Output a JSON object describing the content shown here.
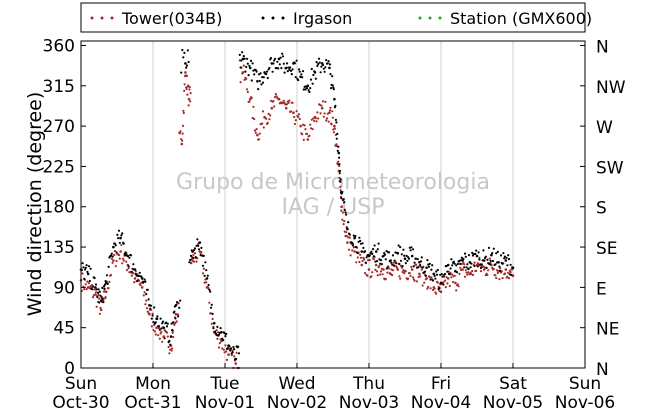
{
  "chart_data": {
    "type": "scatter",
    "ylabel": "Wind direction (degree)",
    "xlabel": "",
    "ylim": [
      0,
      365
    ],
    "xlim": [
      0,
      7
    ],
    "x_unit": "days from Sun Oct-30 00:00",
    "grid": "vertical-only",
    "legend_position": "top",
    "legend": [
      {
        "name": "Tower(034B)",
        "color": "#a52a2a"
      },
      {
        "name": "Irgason",
        "color": "#000000"
      },
      {
        "name": "Station (GMX600)",
        "color": "#2ca02c"
      }
    ],
    "y_ticks": [
      "0",
      "45",
      "90",
      "135",
      "180",
      "225",
      "270",
      "315",
      "360"
    ],
    "y_tick_values": [
      0,
      45,
      90,
      135,
      180,
      225,
      270,
      315,
      360
    ],
    "right_ticks": [
      "N",
      "NE",
      "E",
      "SE",
      "S",
      "SW",
      "W",
      "NW",
      "N"
    ],
    "x_ticks": [
      {
        "day": "Sun",
        "date": "Oct-30"
      },
      {
        "day": "Mon",
        "date": "Oct-31"
      },
      {
        "day": "Tue",
        "date": "Nov-01"
      },
      {
        "day": "Wed",
        "date": "Nov-02"
      },
      {
        "day": "Thu",
        "date": "Nov-03"
      },
      {
        "day": "Fri",
        "date": "Nov-04"
      },
      {
        "day": "Sat",
        "date": "Nov-05"
      },
      {
        "day": "Sun",
        "date": "Nov-06"
      }
    ],
    "series": [
      {
        "name": "Tower(034B)",
        "color": "#a52a2a",
        "points": [
          [
            0.0,
            98
          ],
          [
            0.1,
            90
          ],
          [
            0.2,
            82
          ],
          [
            0.28,
            65
          ],
          [
            0.35,
            85
          ],
          [
            0.45,
            120
          ],
          [
            0.55,
            130
          ],
          [
            0.65,
            115
          ],
          [
            0.75,
            100
          ],
          [
            0.85,
            90
          ],
          [
            0.95,
            60
          ],
          [
            1.05,
            45
          ],
          [
            1.15,
            35
          ],
          [
            1.25,
            25
          ],
          [
            1.32,
            60
          ],
          [
            1.4,
            250
          ],
          [
            1.45,
            330
          ],
          [
            1.5,
            300
          ],
          [
            1.55,
            120
          ],
          [
            1.65,
            130
          ],
          [
            1.75,
            90
          ],
          [
            1.85,
            40
          ],
          [
            1.95,
            30
          ],
          [
            2.05,
            15
          ],
          [
            2.15,
            5
          ],
          [
            2.25,
            330
          ],
          [
            2.35,
            300
          ],
          [
            2.45,
            260
          ],
          [
            2.55,
            280
          ],
          [
            2.65,
            290
          ],
          [
            2.75,
            300
          ],
          [
            2.85,
            290
          ],
          [
            2.95,
            285
          ],
          [
            3.05,
            270
          ],
          [
            3.15,
            255
          ],
          [
            3.25,
            280
          ],
          [
            3.35,
            290
          ],
          [
            3.45,
            285
          ],
          [
            3.52,
            270
          ],
          [
            3.58,
            220
          ],
          [
            3.62,
            180
          ],
          [
            3.7,
            140
          ],
          [
            3.8,
            130
          ],
          [
            3.9,
            115
          ],
          [
            4.0,
            110
          ],
          [
            4.1,
            115
          ],
          [
            4.2,
            110
          ],
          [
            4.3,
            105
          ],
          [
            4.4,
            110
          ],
          [
            4.5,
            108
          ],
          [
            4.6,
            110
          ],
          [
            4.7,
            105
          ],
          [
            4.8,
            100
          ],
          [
            4.9,
            90
          ],
          [
            5.0,
            85
          ],
          [
            5.1,
            100
          ],
          [
            5.2,
            95
          ],
          [
            5.3,
            110
          ],
          [
            5.4,
            105
          ],
          [
            5.5,
            115
          ],
          [
            5.6,
            110
          ],
          [
            5.7,
            115
          ],
          [
            5.8,
            108
          ],
          [
            5.9,
            110
          ],
          [
            6.0,
            103
          ]
        ]
      },
      {
        "name": "Irgason",
        "color": "#000000",
        "points": [
          [
            0.0,
            110
          ],
          [
            0.1,
            105
          ],
          [
            0.2,
            90
          ],
          [
            0.28,
            75
          ],
          [
            0.35,
            95
          ],
          [
            0.45,
            135
          ],
          [
            0.55,
            145
          ],
          [
            0.65,
            125
          ],
          [
            0.75,
            110
          ],
          [
            0.85,
            100
          ],
          [
            0.95,
            70
          ],
          [
            1.05,
            55
          ],
          [
            1.15,
            45
          ],
          [
            1.25,
            35
          ],
          [
            1.32,
            70
          ],
          [
            1.45,
            340
          ],
          [
            1.55,
            130
          ],
          [
            1.65,
            140
          ],
          [
            1.75,
            100
          ],
          [
            1.85,
            50
          ],
          [
            1.95,
            40
          ],
          [
            2.05,
            25
          ],
          [
            2.15,
            10
          ],
          [
            2.25,
            345
          ],
          [
            2.35,
            335
          ],
          [
            2.45,
            320
          ],
          [
            2.55,
            330
          ],
          [
            2.65,
            340
          ],
          [
            2.75,
            345
          ],
          [
            2.85,
            335
          ],
          [
            2.95,
            340
          ],
          [
            3.05,
            325
          ],
          [
            3.15,
            315
          ],
          [
            3.25,
            330
          ],
          [
            3.35,
            340
          ],
          [
            3.45,
            335
          ],
          [
            3.52,
            300
          ],
          [
            3.58,
            240
          ],
          [
            3.62,
            195
          ],
          [
            3.7,
            155
          ],
          [
            3.8,
            145
          ],
          [
            3.9,
            130
          ],
          [
            4.0,
            125
          ],
          [
            4.1,
            130
          ],
          [
            4.2,
            125
          ],
          [
            4.3,
            120
          ],
          [
            4.4,
            128
          ],
          [
            4.5,
            122
          ],
          [
            4.6,
            125
          ],
          [
            4.7,
            118
          ],
          [
            4.8,
            112
          ],
          [
            4.9,
            105
          ],
          [
            5.0,
            95
          ],
          [
            5.1,
            115
          ],
          [
            5.2,
            108
          ],
          [
            5.3,
            120
          ],
          [
            5.4,
            118
          ],
          [
            5.5,
            125
          ],
          [
            5.6,
            120
          ],
          [
            5.7,
            126
          ],
          [
            5.8,
            118
          ],
          [
            5.9,
            120
          ],
          [
            6.0,
            112
          ]
        ]
      },
      {
        "name": "Station (GMX600)",
        "color": "#2ca02c",
        "points": []
      }
    ]
  },
  "watermark": {
    "line1": "Grupo de Micrometeorologia",
    "line2": "IAG / USP"
  }
}
